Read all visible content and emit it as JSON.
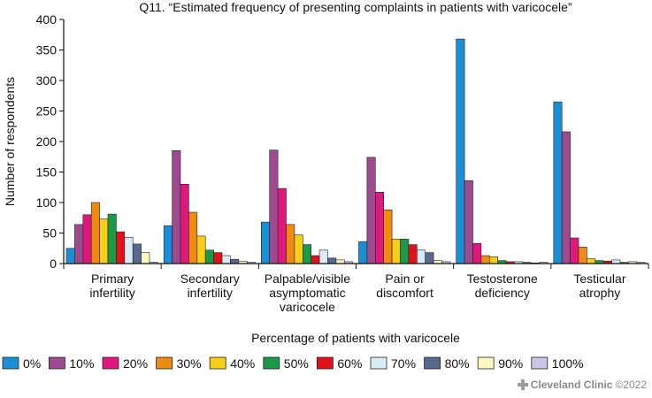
{
  "chart_data": {
    "type": "bar",
    "title": "Q11. “Estimated frequency of presenting complaints in patients with varicocele”",
    "ylabel": "Number of respondents",
    "xlabel": "Percentage of patients with varicocele",
    "ylim": [
      0,
      400
    ],
    "yticks": [
      "0",
      "50",
      "100",
      "150",
      "200",
      "250",
      "300",
      "350",
      "400"
    ],
    "categories": [
      [
        "Primary",
        "infertility"
      ],
      [
        "Secondary",
        "infertility"
      ],
      [
        "Palpable/visible",
        "asymptomatic",
        "varicocele"
      ],
      [
        "Pain or",
        "discomfort"
      ],
      [
        "Testosterone",
        "deficiency"
      ],
      [
        "Testicular",
        "atrophy"
      ]
    ],
    "series": [
      {
        "name": "0%",
        "color": "#1a8fd6",
        "values": [
          25,
          62,
          68,
          36,
          368,
          265
        ]
      },
      {
        "name": "10%",
        "color": "#9e4a8e",
        "values": [
          64,
          185,
          186,
          174,
          136,
          216
        ]
      },
      {
        "name": "20%",
        "color": "#e0187c",
        "values": [
          80,
          130,
          123,
          117,
          33,
          42
        ]
      },
      {
        "name": "30%",
        "color": "#ef8a12",
        "values": [
          100,
          84,
          64,
          88,
          13,
          27
        ]
      },
      {
        "name": "40%",
        "color": "#f7cf16",
        "values": [
          73,
          45,
          47,
          40,
          11,
          8
        ]
      },
      {
        "name": "50%",
        "color": "#1a9a46",
        "values": [
          81,
          22,
          31,
          40,
          5,
          5
        ]
      },
      {
        "name": "60%",
        "color": "#e1111c",
        "values": [
          52,
          18,
          13,
          31,
          3,
          4
        ]
      },
      {
        "name": "70%",
        "color": "#d9ecf8",
        "values": [
          43,
          13,
          22,
          22,
          3,
          6
        ]
      },
      {
        "name": "80%",
        "color": "#566a8f",
        "values": [
          32,
          7,
          9,
          18,
          2,
          2
        ]
      },
      {
        "name": "90%",
        "color": "#fff6c0",
        "values": [
          18,
          4,
          6,
          5,
          1,
          3
        ]
      },
      {
        "name": "100%",
        "color": "#cdc6e3",
        "values": [
          2,
          2,
          3,
          3,
          2,
          2
        ]
      }
    ]
  },
  "credit": {
    "brand": "Cleveland Clinic",
    "copyright": "©2022"
  }
}
